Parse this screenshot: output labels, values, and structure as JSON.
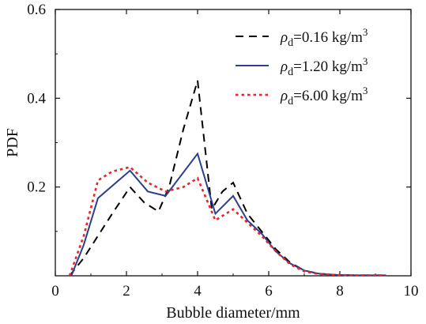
{
  "chart_data": {
    "type": "line",
    "xlabel": "Bubble diameter/mm",
    "ylabel": "PDF",
    "xlim": [
      0,
      10
    ],
    "ylim": [
      0,
      0.6
    ],
    "xticks": [
      "0",
      "2",
      "4",
      "6",
      "8",
      "10"
    ],
    "yticks": [
      "0.2",
      "0.4",
      "0.6"
    ],
    "grid": false,
    "legend_position": "top-right",
    "series": [
      {
        "name": "ρd=0.16 kg/m3",
        "legend_main": "ρ",
        "legend_sub": "d",
        "legend_value": "=0.16 kg/m",
        "legend_sup": "3",
        "style": "dashed",
        "color": "#000000",
        "x": [
          0.4,
          0.8,
          1.2,
          1.6,
          2.1,
          2.5,
          2.9,
          3.2,
          3.6,
          4.0,
          4.4,
          4.7,
          5.0,
          5.4,
          5.8,
          6.2,
          6.6,
          7.0,
          7.4,
          7.9,
          8.5,
          9.3
        ],
        "y": [
          0.0,
          0.04,
          0.09,
          0.14,
          0.2,
          0.165,
          0.145,
          0.2,
          0.33,
          0.44,
          0.15,
          0.19,
          0.21,
          0.14,
          0.1,
          0.06,
          0.03,
          0.012,
          0.005,
          0.002,
          0.001,
          0.001
        ]
      },
      {
        "name": "ρd=1.20 kg/m3",
        "legend_main": "ρ",
        "legend_sub": "d",
        "legend_value": "=1.20 kg/m",
        "legend_sup": "3",
        "style": "solid",
        "color": "#2b3f8f",
        "x": [
          0.45,
          0.8,
          1.2,
          2.1,
          2.6,
          3.1,
          4.0,
          4.5,
          5.0,
          5.4,
          5.8,
          6.2,
          6.6,
          7.0,
          7.4,
          7.9,
          8.5,
          9.3
        ],
        "y": [
          0.0,
          0.07,
          0.175,
          0.237,
          0.19,
          0.18,
          0.275,
          0.14,
          0.18,
          0.125,
          0.095,
          0.055,
          0.028,
          0.012,
          0.005,
          0.002,
          0.001,
          0.001
        ]
      },
      {
        "name": "ρd=6.00 kg/m3",
        "legend_main": "ρ",
        "legend_sub": "d",
        "legend_value": "=6.00 kg/m",
        "legend_sup": "3",
        "style": "dotted",
        "color": "#e8262a",
        "x": [
          0.4,
          0.8,
          1.2,
          1.6,
          2.1,
          2.6,
          3.1,
          3.6,
          4.0,
          4.5,
          5.0,
          5.4,
          5.8,
          6.2,
          6.6,
          7.0,
          7.4,
          7.9,
          8.5,
          9.3
        ],
        "y": [
          0.0,
          0.09,
          0.215,
          0.235,
          0.245,
          0.21,
          0.19,
          0.2,
          0.22,
          0.125,
          0.15,
          0.12,
          0.09,
          0.055,
          0.026,
          0.01,
          0.004,
          0.002,
          0.001,
          0.001
        ]
      }
    ]
  }
}
